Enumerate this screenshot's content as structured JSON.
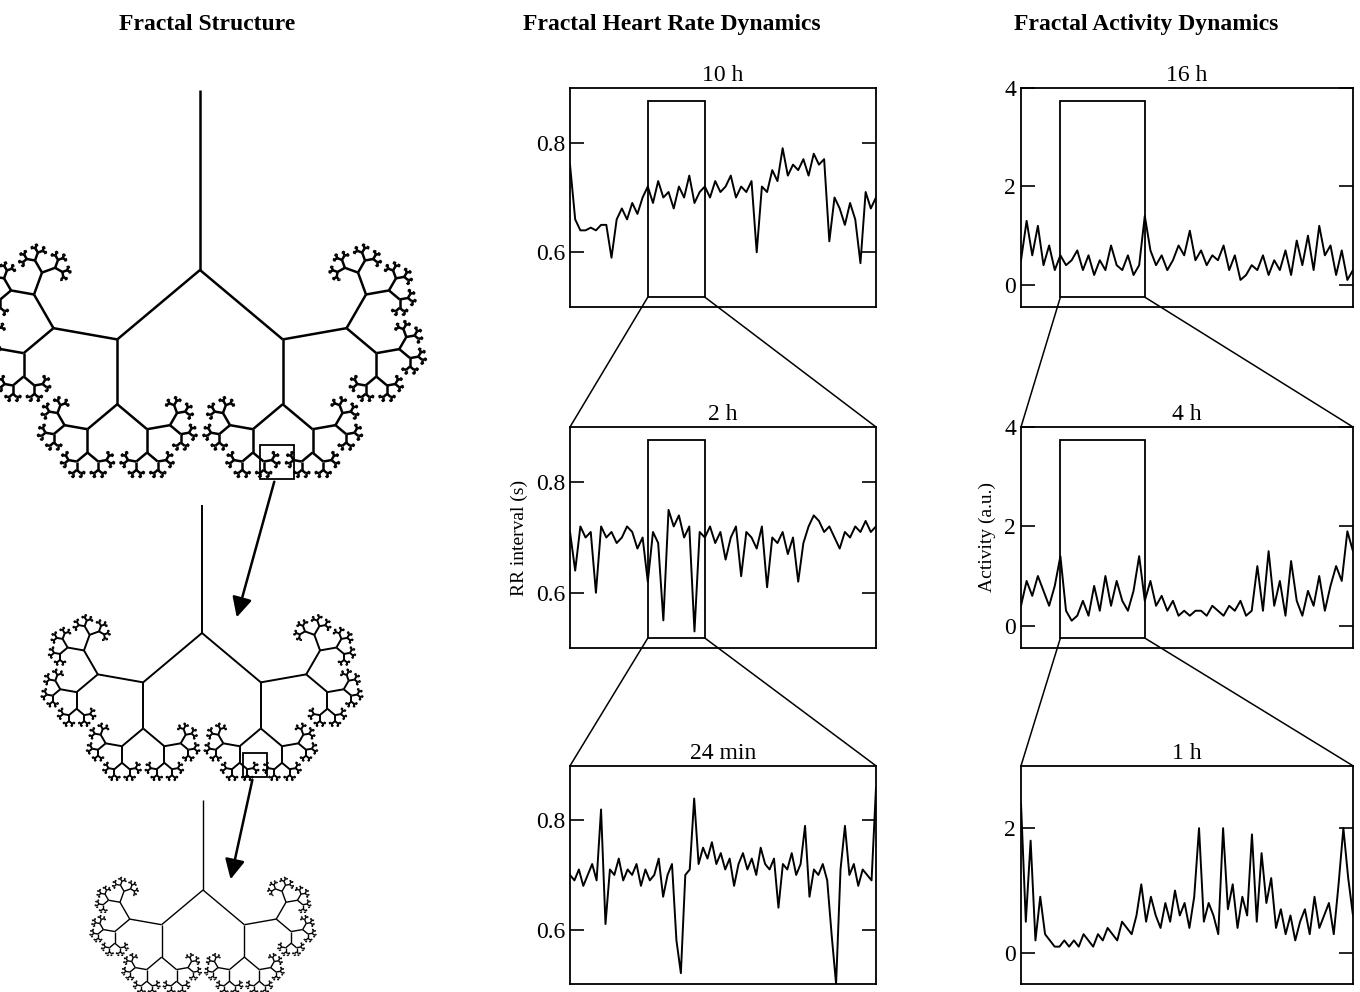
{
  "column_titles": [
    "Fractal Structure",
    "Fractal Heart Rate Dynamics",
    "Fractal Activity Dynamics"
  ],
  "chart_data": [
    {
      "type": "line",
      "title": "10 h",
      "color": "#000000",
      "tick_labels": "y",
      "ylim": [
        0.5,
        0.9
      ],
      "yticks": [
        0.6,
        0.8
      ],
      "zoom_range": [
        15,
        26
      ],
      "values": [
        0.76,
        0.66,
        0.64,
        0.64,
        0.645,
        0.64,
        0.65,
        0.65,
        0.59,
        0.66,
        0.68,
        0.66,
        0.69,
        0.67,
        0.7,
        0.72,
        0.69,
        0.73,
        0.7,
        0.71,
        0.68,
        0.72,
        0.7,
        0.74,
        0.69,
        0.71,
        0.72,
        0.7,
        0.73,
        0.71,
        0.72,
        0.74,
        0.7,
        0.72,
        0.71,
        0.73,
        0.6,
        0.72,
        0.71,
        0.75,
        0.73,
        0.79,
        0.74,
        0.76,
        0.75,
        0.77,
        0.74,
        0.78,
        0.76,
        0.77,
        0.62,
        0.7,
        0.68,
        0.65,
        0.69,
        0.66,
        0.58,
        0.71,
        0.68,
        0.7
      ]
    },
    {
      "type": "line",
      "title": "2 h",
      "ylabel": "RR interval (s)",
      "color": "#000000",
      "tick_labels": "y",
      "ylim": [
        0.5,
        0.9
      ],
      "yticks": [
        0.6,
        0.8
      ],
      "zoom_range": [
        15,
        26
      ],
      "values": [
        0.71,
        0.64,
        0.72,
        0.7,
        0.71,
        0.6,
        0.72,
        0.7,
        0.71,
        0.69,
        0.7,
        0.72,
        0.71,
        0.68,
        0.7,
        0.62,
        0.71,
        0.69,
        0.55,
        0.75,
        0.72,
        0.74,
        0.7,
        0.72,
        0.53,
        0.71,
        0.7,
        0.72,
        0.69,
        0.71,
        0.66,
        0.7,
        0.72,
        0.63,
        0.71,
        0.7,
        0.68,
        0.72,
        0.61,
        0.7,
        0.69,
        0.71,
        0.67,
        0.7,
        0.62,
        0.69,
        0.72,
        0.74,
        0.73,
        0.71,
        0.72,
        0.7,
        0.68,
        0.71,
        0.7,
        0.72,
        0.71,
        0.73,
        0.71,
        0.72
      ]
    },
    {
      "type": "line",
      "title": "24 min",
      "color": "#000000",
      "tick_labels": "y",
      "ylim": [
        0.5,
        0.9
      ],
      "yticks": [
        0.6,
        0.8
      ],
      "values": [
        0.7,
        0.69,
        0.71,
        0.68,
        0.7,
        0.72,
        0.69,
        0.82,
        0.61,
        0.71,
        0.7,
        0.73,
        0.69,
        0.71,
        0.7,
        0.72,
        0.68,
        0.71,
        0.69,
        0.7,
        0.73,
        0.66,
        0.7,
        0.72,
        0.58,
        0.52,
        0.7,
        0.71,
        0.84,
        0.72,
        0.75,
        0.73,
        0.76,
        0.72,
        0.74,
        0.71,
        0.73,
        0.68,
        0.72,
        0.74,
        0.71,
        0.73,
        0.7,
        0.75,
        0.72,
        0.71,
        0.73,
        0.64,
        0.72,
        0.71,
        0.74,
        0.7,
        0.72,
        0.79,
        0.66,
        0.71,
        0.7,
        0.72,
        0.69,
        0.59,
        0.5,
        0.71,
        0.79,
        0.7,
        0.72,
        0.68,
        0.71,
        0.7,
        0.69,
        0.86
      ]
    },
    {
      "type": "line",
      "title": "16 h",
      "color": "#000000",
      "tick_labels": "y",
      "ylim": [
        -0.45,
        4
      ],
      "yticks": [
        0,
        2,
        4
      ],
      "zoom_range": [
        7,
        22
      ],
      "values": [
        0.5,
        1.3,
        0.6,
        1.2,
        0.4,
        0.8,
        0.3,
        0.6,
        0.4,
        0.5,
        0.7,
        0.3,
        0.6,
        0.2,
        0.5,
        0.3,
        0.8,
        0.4,
        0.3,
        0.6,
        0.2,
        0.4,
        1.4,
        0.7,
        0.4,
        0.6,
        0.3,
        0.5,
        0.8,
        0.6,
        1.1,
        0.5,
        0.7,
        0.4,
        0.6,
        0.5,
        0.8,
        0.3,
        0.6,
        0.1,
        0.2,
        0.4,
        0.3,
        0.6,
        0.2,
        0.5,
        0.3,
        0.7,
        0.2,
        0.9,
        0.4,
        1.0,
        0.3,
        1.2,
        0.6,
        0.8,
        0.2,
        0.7,
        0.1,
        0.3
      ]
    },
    {
      "type": "line",
      "title": "4 h",
      "ylabel": "Activity (a.u.)",
      "color": "#000000",
      "tick_labels": "y",
      "ylim": [
        -0.45,
        4
      ],
      "yticks": [
        0,
        2,
        4
      ],
      "zoom_range": [
        7,
        22
      ],
      "values": [
        0.4,
        0.9,
        0.6,
        1.0,
        0.7,
        0.4,
        0.8,
        1.4,
        0.3,
        0.1,
        0.2,
        0.5,
        0.2,
        0.8,
        0.3,
        1.0,
        0.4,
        0.9,
        0.5,
        0.3,
        0.7,
        1.4,
        0.5,
        0.9,
        0.4,
        0.6,
        0.3,
        0.5,
        0.2,
        0.3,
        0.2,
        0.3,
        0.3,
        0.2,
        0.4,
        0.3,
        0.2,
        0.4,
        0.3,
        0.5,
        0.2,
        0.3,
        1.2,
        0.3,
        1.5,
        0.4,
        0.9,
        0.2,
        1.3,
        0.5,
        0.2,
        0.7,
        0.4,
        1.0,
        0.3,
        0.8,
        1.2,
        0.9,
        1.9,
        1.5
      ]
    },
    {
      "type": "line",
      "title": "1 h",
      "color": "#000000",
      "tick_labels": "y",
      "ylim": [
        -0.5,
        3
      ],
      "yticks": [
        0,
        2
      ],
      "values": [
        2.4,
        0.5,
        1.8,
        0.2,
        0.9,
        0.3,
        0.2,
        0.1,
        0.1,
        0.2,
        0.1,
        0.2,
        0.1,
        0.3,
        0.2,
        0.1,
        0.3,
        0.2,
        0.4,
        0.3,
        0.2,
        0.5,
        0.4,
        0.3,
        0.6,
        1.1,
        0.5,
        0.9,
        0.6,
        0.4,
        0.8,
        0.5,
        1.0,
        0.6,
        0.8,
        0.4,
        0.9,
        2.0,
        0.5,
        0.8,
        0.6,
        0.3,
        2.0,
        0.7,
        1.1,
        0.4,
        0.9,
        0.6,
        1.9,
        0.5,
        1.6,
        0.8,
        1.2,
        0.4,
        0.7,
        0.3,
        0.6,
        0.2,
        0.5,
        0.7,
        0.3,
        0.9,
        0.4,
        0.6,
        0.8,
        0.3,
        1.1,
        2.0,
        1.2,
        0.6
      ]
    }
  ]
}
